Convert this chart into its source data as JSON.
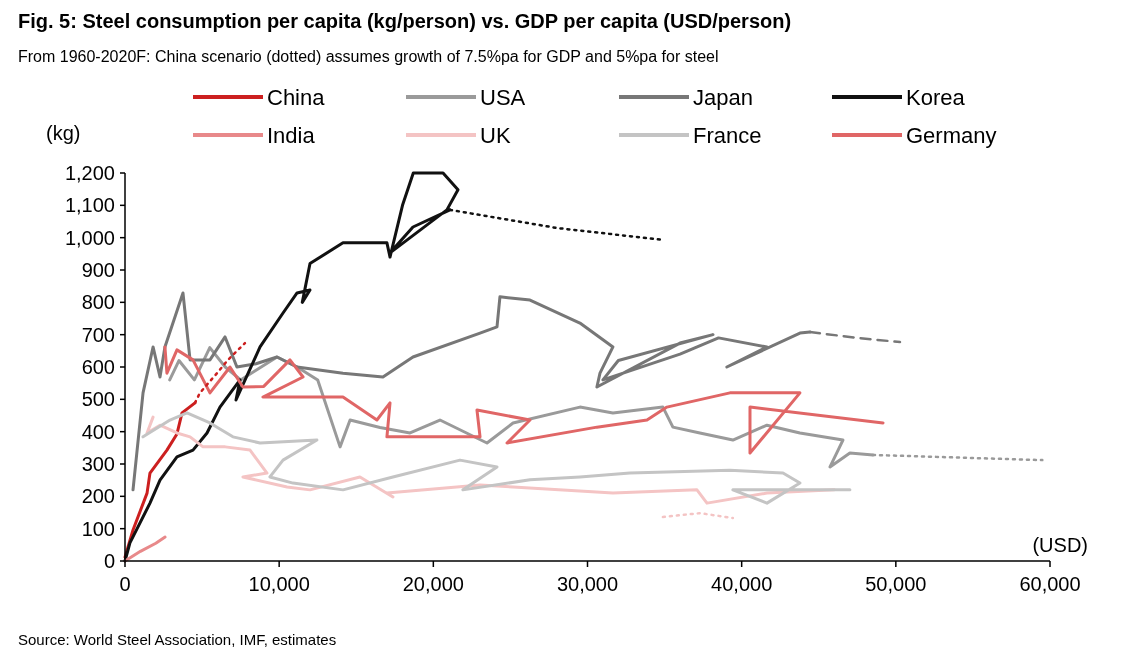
{
  "chart_data": {
    "type": "line",
    "title": "Fig. 5:  Steel consumption per capita (kg/person) vs. GDP per capita (USD/person)",
    "subtitle": "From 1960-2020F: China scenario (dotted) assumes growth of 7.5%pa for GDP and 5%pa for steel",
    "xlabel": "(USD)",
    "ylabel": "(kg)",
    "annotations": [
      "Source: World Steel Association, IMF, estimates"
    ],
    "xlim": [
      0,
      60000
    ],
    "ylim": [
      0,
      1200
    ],
    "xticks": [
      {
        "value": 0,
        "label": "0"
      },
      {
        "value": 10000,
        "label": "10,000"
      },
      {
        "value": 20000,
        "label": "20,000"
      },
      {
        "value": 30000,
        "label": "30,000"
      },
      {
        "value": 40000,
        "label": "40,000"
      },
      {
        "value": 50000,
        "label": "50,000"
      },
      {
        "value": 60000,
        "label": "60,000"
      }
    ],
    "yticks": [
      {
        "value": 0,
        "label": "0"
      },
      {
        "value": 100,
        "label": "100"
      },
      {
        "value": 200,
        "label": "200"
      },
      {
        "value": 300,
        "label": "300"
      },
      {
        "value": 400,
        "label": "400"
      },
      {
        "value": 500,
        "label": "500"
      },
      {
        "value": 600,
        "label": "600"
      },
      {
        "value": 700,
        "label": "700"
      },
      {
        "value": 800,
        "label": "800"
      },
      {
        "value": 900,
        "label": "900"
      },
      {
        "value": 1000,
        "label": "1,000"
      },
      {
        "value": 1100,
        "label": "1,100"
      },
      {
        "value": 1200,
        "label": "1,200"
      }
    ],
    "grid": false,
    "legend": "top",
    "marker": "none",
    "series": [
      {
        "name": "China",
        "color": "#cc1f1f",
        "x": [
          0,
          520,
          1430,
          1620,
          2720,
          3370,
          3700,
          4540
        ],
        "values": [
          12,
          96,
          210,
          272,
          343,
          393,
          458,
          489
        ]
      },
      {
        "name": "USA",
        "color": "#9a9a9a",
        "x": [
          2900,
          3500,
          4500,
          5500,
          6500,
          7500,
          8500,
          9860,
          11160,
          12500,
          13950,
          14600,
          16540,
          18490,
          20430,
          23480,
          25170,
          29510,
          31650,
          34890,
          35540,
          37290,
          39430,
          41640,
          43780,
          46570,
          45730,
          47020,
          48520
        ],
        "values": [
          560,
          620,
          560,
          660,
          600,
          560,
          590,
          631,
          600,
          560,
          353,
          436,
          413,
          396,
          436,
          365,
          427,
          476,
          458,
          476,
          414,
          396,
          374,
          420,
          396,
          374,
          291,
          334,
          328
        ]
      },
      {
        "name": "Japan",
        "color": "#777777",
        "x": [
          520,
          650,
          1170,
          1820,
          2270,
          2590,
          3760,
          4220,
          5510,
          6490,
          7260,
          8500,
          9860,
          11160,
          14140,
          16730,
          18680,
          23030,
          24130,
          24320,
          26270,
          29510,
          31650,
          30810,
          30610,
          36000,
          38140,
          32000,
          31000,
          36000,
          38500,
          41640,
          39040,
          43780,
          44430
        ],
        "values": [
          220,
          280,
          520,
          662,
          569,
          662,
          829,
          622,
          622,
          693,
          600,
          610,
          631,
          600,
          581,
          569,
          631,
          705,
          724,
          817,
          807,
          736,
          662,
          581,
          538,
          674,
          700,
          620,
          560,
          640,
          690,
          662,
          600,
          705,
          708
        ]
      },
      {
        "name": "Korea",
        "color": "#111111",
        "x": [
          0,
          320,
          1620,
          2270,
          3370,
          4410,
          5320,
          6160,
          7460,
          7200,
          8760,
          10250,
          11160,
          12000,
          11500,
          12000,
          14140,
          16990,
          17190,
          18000,
          18700,
          20630,
          21600,
          20880,
          17190,
          18680,
          21080
        ],
        "values": [
          0,
          56,
          179,
          250,
          322,
          343,
          396,
          476,
          560,
          498,
          662,
          767,
          829,
          838,
          800,
          920,
          984,
          984,
          940,
          1100,
          1200,
          1200,
          1148,
          1086,
          953,
          1033,
          1086
        ]
      },
      {
        "name": "India",
        "color": "#e8898a",
        "x": [
          0,
          1000,
          2000,
          2600
        ],
        "values": [
          0,
          30,
          55,
          74
        ]
      },
      {
        "name": "UK",
        "color": "#f4c4c4",
        "x": [
          1820,
          1430,
          2270,
          3370,
          4220,
          5060,
          6500,
          8110,
          9210,
          7650,
          10510,
          12000,
          15240,
          17380,
          16990,
          23030,
          25170,
          31650,
          37100,
          37750,
          41640,
          46000
        ],
        "values": [
          445,
          396,
          420,
          396,
          384,
          353,
          353,
          343,
          272,
          260,
          229,
          220,
          260,
          198,
          210,
          235,
          229,
          210,
          220,
          179,
          210,
          220
        ]
      },
      {
        "name": "France",
        "color": "#c4c4c4",
        "x": [
          1170,
          2920,
          4020,
          5510,
          7000,
          8760,
          12450,
          10250,
          9400,
          10900,
          14140,
          17380,
          21730,
          24130,
          21920,
          26270,
          29510,
          32750,
          39240,
          42680,
          43780,
          41640,
          39430,
          47020
        ],
        "values": [
          384,
          436,
          458,
          427,
          384,
          365,
          374,
          312,
          260,
          241,
          220,
          260,
          312,
          291,
          220,
          251,
          260,
          272,
          281,
          272,
          241,
          179,
          220,
          220
        ]
      },
      {
        "name": "Germany",
        "color": "#e06666",
        "x": [
          2590,
          2720,
          3370,
          4410,
          5510,
          6810,
          7650,
          9000,
          10700,
          11550,
          8950,
          14140,
          16340,
          17190,
          16990,
          23030,
          22830,
          26270,
          24780,
          30610,
          33860,
          35150,
          39240,
          43780,
          40540,
          40540,
          49170
        ],
        "values": [
          662,
          581,
          653,
          622,
          520,
          600,
          538,
          540,
          622,
          569,
          507,
          507,
          436,
          489,
          384,
          384,
          467,
          436,
          365,
          414,
          436,
          476,
          520,
          520,
          334,
          476,
          427
        ]
      },
      {
        "color": "#cc1f1f",
        "line_style": "dotted",
        "x": [
          4540,
          4860,
          5970,
          6680,
          7780
        ],
        "values": [
          489,
          520,
          581,
          622,
          674
        ]
      },
      {
        "color": "#9a9a9a",
        "line_style": "dotted",
        "x": [
          48520,
          54000,
          59500
        ],
        "values": [
          328,
          320,
          312
        ]
      },
      {
        "color": "#777777",
        "line_style": "dashed",
        "x": [
          44430,
          47500,
          50270
        ],
        "values": [
          708,
          690,
          677
        ]
      },
      {
        "color": "#111111",
        "line_style": "dotted",
        "x": [
          21080,
          28000,
          34890
        ],
        "values": [
          1086,
          1030,
          993
        ]
      },
      {
        "color": "#f4c4c4",
        "line_style": "dotted",
        "x": [
          34890,
          37290,
          39430
        ],
        "values": [
          136,
          148,
          133
        ]
      }
    ]
  }
}
